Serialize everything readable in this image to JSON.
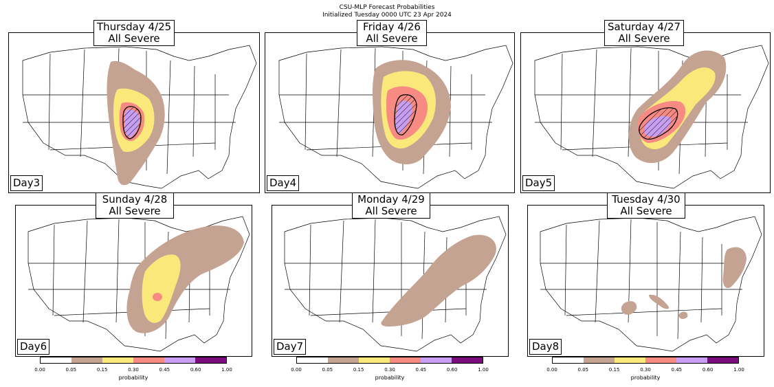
{
  "header": {
    "line1": "CSU-MLP Forecast Probabilities",
    "line2": "Initialized Tuesday 0000 UTC 23 Apr 2024"
  },
  "panels": [
    {
      "title_line1": "Thursday 4/25",
      "title_line2": "All Severe",
      "day_label": "Day3"
    },
    {
      "title_line1": "Friday 4/26",
      "title_line2": "All Severe",
      "day_label": "Day4"
    },
    {
      "title_line1": "Saturday 4/27",
      "title_line2": "All Severe",
      "day_label": "Day5"
    },
    {
      "title_line1": "Sunday 4/28",
      "title_line2": "All Severe",
      "day_label": "Day6"
    },
    {
      "title_line1": "Monday 4/29",
      "title_line2": "All Severe",
      "day_label": "Day7"
    },
    {
      "title_line1": "Tuesday 4/30",
      "title_line2": "All Severe",
      "day_label": "Day8"
    }
  ],
  "colorbar": {
    "label": "probability",
    "ticks": [
      "0.00",
      "0.05",
      "0.15",
      "0.30",
      "0.45",
      "0.60",
      "1.00"
    ],
    "colors": [
      "#ffffff",
      "#c4a393",
      "#fae97a",
      "#f88a84",
      "#c79ef2",
      "#7a0c7e"
    ]
  },
  "legend_colors": {
    "p05": "#c4a393",
    "p15": "#fae97a",
    "p30": "#f88a84",
    "p45": "#c79ef2",
    "sig_hatch": "#000000"
  }
}
